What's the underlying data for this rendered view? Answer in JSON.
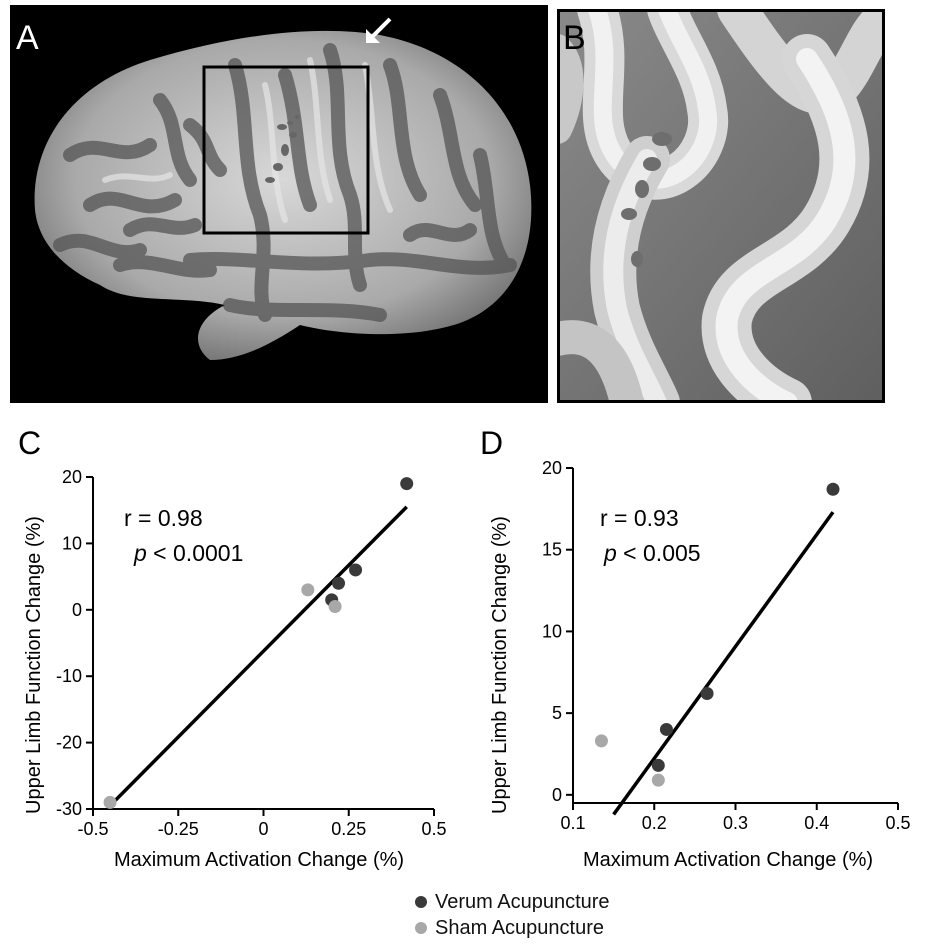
{
  "panels": {
    "a": {
      "label": "A"
    },
    "b": {
      "label": "B"
    }
  },
  "colors": {
    "verum": "#3a3a3a",
    "sham": "#a8a8a8"
  },
  "legend": {
    "verum": "Verum Acupuncture",
    "sham": "Sham Acupuncture"
  },
  "chart_data": [
    {
      "panel_label": "C",
      "type": "scatter",
      "xlabel": "Maximum Activation Change (%)",
      "ylabel": "Upper Limb Function Change (%)",
      "xlim": [
        -0.5,
        0.5
      ],
      "ylim": [
        -30,
        20
      ],
      "xticks": [
        "-0.5",
        "-0.25",
        "0",
        "0.25",
        "0.5"
      ],
      "xtick_values": [
        -0.5,
        -0.25,
        0,
        0.25,
        0.5
      ],
      "yticks": [
        "-30",
        "-20",
        "-10",
        "0",
        "10",
        "20"
      ],
      "ytick_values": [
        -30,
        -20,
        -10,
        0,
        10,
        20
      ],
      "annotation_r": "r = 0.98",
      "annotation_p_sym": "p",
      "annotation_p_val": " < 0.0001",
      "fit_line": [
        [
          -0.45,
          -29.5
        ],
        [
          0.42,
          15.5
        ]
      ],
      "series": [
        {
          "name": "Verum Acupuncture",
          "points": [
            [
              0.42,
              19
            ],
            [
              0.27,
              6
            ],
            [
              0.22,
              4
            ],
            [
              0.2,
              1.5
            ]
          ]
        },
        {
          "name": "Sham Acupuncture",
          "points": [
            [
              -0.45,
              -29
            ],
            [
              0.13,
              3
            ],
            [
              0.21,
              0.5
            ]
          ]
        }
      ]
    },
    {
      "panel_label": "D",
      "type": "scatter",
      "xlabel": "Maximum Activation Change (%)",
      "ylabel": "Upper Limb Function Change (%)",
      "xlim": [
        0.1,
        0.5
      ],
      "ylim": [
        -0.5,
        20
      ],
      "xticks": [
        "0.1",
        "0.2",
        "0.3",
        "0.4",
        "0.5"
      ],
      "xtick_values": [
        0.1,
        0.2,
        0.3,
        0.4,
        0.5
      ],
      "yticks": [
        "0",
        "5",
        "10",
        "15",
        "20"
      ],
      "ytick_values": [
        0,
        5,
        10,
        15,
        20
      ],
      "annotation_r": "r = 0.93",
      "annotation_p_sym": "p",
      "annotation_p_val": " < 0.005",
      "fit_line": [
        [
          0.15,
          -1.2
        ],
        [
          0.42,
          17.3
        ]
      ],
      "series": [
        {
          "name": "Verum Acupuncture",
          "points": [
            [
              0.42,
              18.7
            ],
            [
              0.265,
              6.2
            ],
            [
              0.215,
              4.0
            ],
            [
              0.205,
              1.8
            ]
          ]
        },
        {
          "name": "Sham Acupuncture",
          "points": [
            [
              0.135,
              3.3
            ],
            [
              0.205,
              0.9
            ]
          ]
        }
      ]
    }
  ]
}
